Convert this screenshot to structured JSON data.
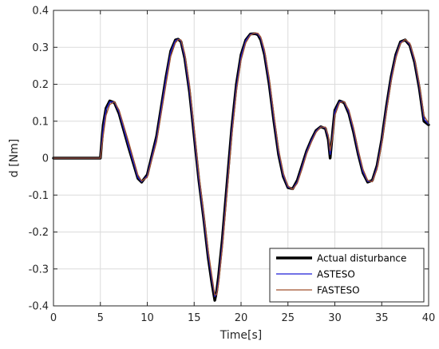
{
  "chart_data": {
    "type": "line",
    "title": "",
    "xlabel": "Time[s]",
    "ylabel": "d [Nm]",
    "xlim": [
      0,
      40
    ],
    "ylim": [
      -0.4,
      0.4
    ],
    "xticks": [
      0,
      5,
      10,
      15,
      20,
      25,
      30,
      35,
      40
    ],
    "yticks": [
      -0.4,
      -0.3,
      -0.2,
      -0.1,
      0,
      0.1,
      0.2,
      0.3,
      0.4
    ],
    "xtick_labels": [
      "0",
      "5",
      "10",
      "15",
      "20",
      "25",
      "30",
      "35",
      "40"
    ],
    "ytick_labels": [
      "-0.4",
      "-0.3",
      "-0.2",
      "-0.1",
      "0",
      "0.1",
      "0.2",
      "0.3",
      "0.4"
    ],
    "grid": true,
    "legend_position": "bottom-right",
    "series": [
      {
        "name": "Actual disturbance",
        "color": "#000000",
        "x": [
          0,
          5,
          5.3,
          5.6,
          6.0,
          6.5,
          7.0,
          8.0,
          9.0,
          9.4,
          10.0,
          11.0,
          12.0,
          12.5,
          13.0,
          13.3,
          13.6,
          14.0,
          14.5,
          15.0,
          15.5,
          16.0,
          16.5,
          16.9,
          17.2,
          17.4,
          17.6,
          18.0,
          18.5,
          19.0,
          19.5,
          20.0,
          20.5,
          21.0,
          21.5,
          21.8,
          22.1,
          22.5,
          23.0,
          23.5,
          24.0,
          24.5,
          25.0,
          25.5,
          26.0,
          26.5,
          27.0,
          27.5,
          28.0,
          28.5,
          29.0,
          29.3,
          29.5,
          29.8,
          30.0,
          30.5,
          31.0,
          31.5,
          32.0,
          32.5,
          33.0,
          33.5,
          34.0,
          34.5,
          35.0,
          35.5,
          36.0,
          36.5,
          37.0,
          37.5,
          38.0,
          38.5,
          39.0,
          39.5,
          40.0
        ],
        "y": [
          0,
          0,
          0.09,
          0.135,
          0.155,
          0.15,
          0.12,
          0.03,
          -0.055,
          -0.065,
          -0.045,
          0.06,
          0.22,
          0.29,
          0.32,
          0.322,
          0.315,
          0.27,
          0.18,
          0.06,
          -0.06,
          -0.16,
          -0.27,
          -0.34,
          -0.385,
          -0.36,
          -0.32,
          -0.22,
          -0.07,
          0.08,
          0.2,
          0.28,
          0.32,
          0.336,
          0.337,
          0.334,
          0.32,
          0.28,
          0.2,
          0.1,
          0.01,
          -0.05,
          -0.08,
          -0.083,
          -0.06,
          -0.02,
          0.02,
          0.05,
          0.075,
          0.085,
          0.08,
          0.05,
          0.0,
          0.08,
          0.13,
          0.155,
          0.15,
          0.12,
          0.07,
          0.01,
          -0.04,
          -0.065,
          -0.06,
          -0.02,
          0.05,
          0.14,
          0.22,
          0.28,
          0.315,
          0.32,
          0.305,
          0.26,
          0.19,
          0.1,
          0.09
        ]
      },
      {
        "name": "ASTESO",
        "color": "#1f1fd6",
        "x": [
          0,
          5,
          5.3,
          5.6,
          6.0,
          6.5,
          7.0,
          8.0,
          9.0,
          9.4,
          10.0,
          11.0,
          12.0,
          12.5,
          13.0,
          13.3,
          13.6,
          14.0,
          14.5,
          15.0,
          15.5,
          16.0,
          16.5,
          16.9,
          17.2,
          17.4,
          17.6,
          18.0,
          18.5,
          19.0,
          19.5,
          20.0,
          20.5,
          21.0,
          21.5,
          21.8,
          22.1,
          22.5,
          23.0,
          23.5,
          24.0,
          24.5,
          25.0,
          25.5,
          26.0,
          26.5,
          27.0,
          27.5,
          28.0,
          28.5,
          29.0,
          29.3,
          29.5,
          29.8,
          30.0,
          30.5,
          31.0,
          31.5,
          32.0,
          32.5,
          33.0,
          33.5,
          34.0,
          34.5,
          35.0,
          35.5,
          36.0,
          36.5,
          37.0,
          37.5,
          38.0,
          38.5,
          39.0,
          39.5,
          40.0
        ],
        "y": [
          0,
          0,
          0.08,
          0.13,
          0.152,
          0.152,
          0.124,
          0.034,
          -0.052,
          -0.064,
          -0.048,
          0.055,
          0.215,
          0.287,
          0.318,
          0.322,
          0.317,
          0.274,
          0.186,
          0.066,
          -0.055,
          -0.156,
          -0.262,
          -0.33,
          -0.375,
          -0.366,
          -0.33,
          -0.232,
          -0.082,
          0.07,
          0.192,
          0.275,
          0.318,
          0.335,
          0.338,
          0.336,
          0.324,
          0.285,
          0.207,
          0.107,
          0.016,
          -0.046,
          -0.078,
          -0.084,
          -0.064,
          -0.024,
          0.017,
          0.048,
          0.073,
          0.085,
          0.082,
          0.056,
          0.01,
          0.07,
          0.125,
          0.153,
          0.152,
          0.124,
          0.075,
          0.014,
          -0.037,
          -0.063,
          -0.062,
          -0.024,
          0.045,
          0.134,
          0.215,
          0.276,
          0.313,
          0.321,
          0.308,
          0.264,
          0.196,
          0.106,
          0.092
        ]
      },
      {
        "name": "FASTESO",
        "color": "#a0522d",
        "x": [
          0,
          5,
          5.3,
          5.6,
          6.0,
          6.5,
          7.0,
          8.0,
          9.0,
          9.4,
          10.0,
          11.0,
          12.0,
          12.5,
          13.0,
          13.3,
          13.6,
          14.0,
          14.5,
          15.0,
          15.5,
          16.0,
          16.5,
          16.9,
          17.2,
          17.4,
          17.6,
          18.0,
          18.5,
          19.0,
          19.5,
          20.0,
          20.5,
          21.0,
          21.5,
          21.8,
          22.1,
          22.5,
          23.0,
          23.5,
          24.0,
          24.5,
          25.0,
          25.5,
          26.0,
          26.5,
          27.0,
          27.5,
          28.0,
          28.5,
          29.0,
          29.3,
          29.5,
          29.8,
          30.0,
          30.5,
          31.0,
          31.5,
          32.0,
          32.5,
          33.0,
          33.5,
          34.0,
          34.5,
          35.0,
          35.5,
          36.0,
          36.5,
          37.0,
          37.5,
          38.0,
          38.5,
          39.0,
          39.5,
          40.0
        ],
        "y": [
          0,
          0,
          0.06,
          0.115,
          0.145,
          0.153,
          0.13,
          0.045,
          -0.045,
          -0.062,
          -0.052,
          0.045,
          0.2,
          0.275,
          0.312,
          0.321,
          0.32,
          0.283,
          0.2,
          0.08,
          -0.042,
          -0.145,
          -0.25,
          -0.32,
          -0.37,
          -0.37,
          -0.34,
          -0.245,
          -0.095,
          0.055,
          0.18,
          0.265,
          0.312,
          0.333,
          0.339,
          0.338,
          0.328,
          0.293,
          0.218,
          0.118,
          0.025,
          -0.04,
          -0.075,
          -0.085,
          -0.068,
          -0.03,
          0.012,
          0.043,
          0.07,
          0.084,
          0.084,
          0.062,
          0.02,
          0.06,
          0.115,
          0.15,
          0.153,
          0.13,
          0.082,
          0.022,
          -0.03,
          -0.06,
          -0.064,
          -0.03,
          0.037,
          0.125,
          0.207,
          0.27,
          0.31,
          0.321,
          0.311,
          0.27,
          0.203,
          0.115,
          0.095
        ]
      }
    ]
  }
}
